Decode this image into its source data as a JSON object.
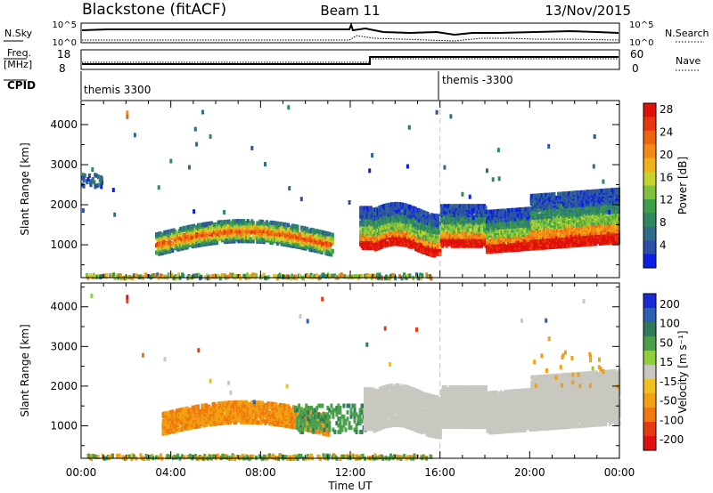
{
  "header": {
    "station": "Blackstone (fitACF)",
    "beam": "Beam 11",
    "date": "13/Nov/2015"
  },
  "top_panels": {
    "nsky_label": "N.Sky",
    "nsky_ticks": [
      "10^5",
      "10^0"
    ],
    "nsearch_label": "N.Search",
    "nsearch_ticks": [
      "10^5",
      "10^0"
    ],
    "freq_label_1": "Freq.",
    "freq_label_2": "[MHz]",
    "freq_ticks": [
      "18",
      "8"
    ],
    "nave_label": "Nave",
    "nave_ticks": [
      "60",
      "0"
    ],
    "cpid_label": "CPID",
    "cpid_entries": [
      {
        "text": "themis 3300",
        "start_hour": 0
      },
      {
        "text": "themis -3300",
        "start_hour": 16
      }
    ]
  },
  "chart_data": [
    {
      "type": "heatmap",
      "name": "power",
      "ylabel": "Slant Range [km]",
      "yticks": [
        1000,
        2000,
        3000,
        4000
      ],
      "ylim": [
        180,
        4600
      ],
      "xlim": [
        0,
        24
      ],
      "xticks": [
        0,
        4,
        8,
        12,
        16,
        20,
        24
      ],
      "colorbar": {
        "label": "Power [dB]",
        "tick_labels": [
          "4",
          "8",
          "12",
          "16",
          "20",
          "24",
          "28"
        ],
        "colors": [
          "#0a1fe6",
          "#2c4fa8",
          "#2f6d88",
          "#2e8a5e",
          "#3e9f4a",
          "#7fc23c",
          "#c8d22e",
          "#f0b21a",
          "#f28a14",
          "#ee6410",
          "#e8360e",
          "#e0100c"
        ]
      },
      "regions": [
        {
          "desc": "low-range band",
          "x": [
            0.2,
            15.6
          ],
          "y": [
            200,
            320
          ],
          "value_db": 8
        },
        {
          "desc": "morning band",
          "x": [
            3.2,
            11.2
          ],
          "y": [
            800,
            1500
          ],
          "value_db": 14
        },
        {
          "desc": "evening band",
          "x": [
            12.0,
            23.9
          ],
          "y": [
            950,
            2600
          ],
          "value_db": 20
        },
        {
          "desc": "early sporadic",
          "x": [
            0.0,
            1.0
          ],
          "y": [
            2500,
            2800
          ],
          "value_db": 6
        }
      ]
    },
    {
      "type": "heatmap",
      "name": "velocity",
      "ylabel": "Slant Range [km]",
      "yticks": [
        1000,
        2000,
        3000,
        4000
      ],
      "ylim": [
        180,
        4600
      ],
      "xlim": [
        0,
        24
      ],
      "xticks": [
        0,
        4,
        8,
        12,
        16,
        20,
        24
      ],
      "xtick_labels": [
        "00:00",
        "04:00",
        "08:00",
        "12:00",
        "16:00",
        "20:00",
        "00:00"
      ],
      "xlabel": "Time UT",
      "colorbar": {
        "label": "Velocity [m s⁻¹]",
        "tick_labels": [
          "200",
          "100",
          "50",
          "15",
          "-15",
          "-50",
          "-100",
          "-200"
        ],
        "colors": [
          "#1a2ad8",
          "#2f5fb0",
          "#2f7a5a",
          "#4aa04a",
          "#8fd03a",
          "#c8c8c0",
          "#f0c020",
          "#f0a010",
          "#f07810",
          "#e83a10",
          "#e01010"
        ]
      },
      "regions": [
        {
          "desc": "morning flow",
          "x": [
            3.5,
            11.0
          ],
          "y": [
            800,
            1500
          ],
          "value_ms": -40
        },
        {
          "desc": "ground scatter",
          "x": [
            12.5,
            23.9
          ],
          "y": [
            950,
            2300
          ],
          "value_ms": 0
        },
        {
          "desc": "low-range band",
          "x": [
            0.2,
            15.6
          ],
          "y": [
            200,
            320
          ],
          "value_ms": 40
        }
      ]
    }
  ]
}
